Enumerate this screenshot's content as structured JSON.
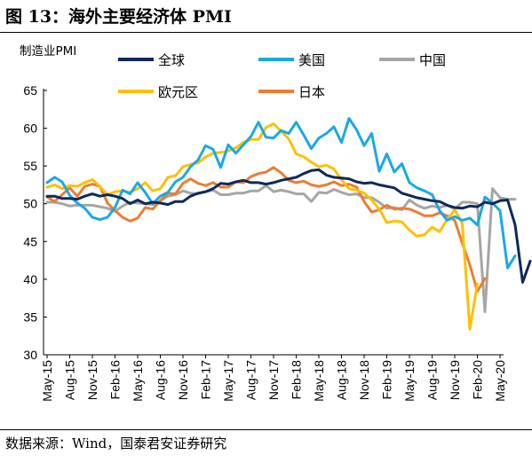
{
  "figure": {
    "title": "图 13：海外主要经济体 PMI",
    "source": "数据来源：Wind，国泰君安证券研究"
  },
  "chart_data": {
    "type": "line",
    "ylabel": "制造业PMI",
    "ylim": [
      30,
      65
    ],
    "yticks": [
      30,
      35,
      40,
      45,
      50,
      55,
      60,
      65
    ],
    "x_labels": [
      "May-15",
      "Aug-15",
      "Nov-15",
      "Feb-16",
      "May-16",
      "Aug-16",
      "Nov-16",
      "Feb-17",
      "May-17",
      "Aug-17",
      "Nov-17",
      "Feb-18",
      "May-18",
      "Aug-18",
      "Nov-18",
      "Feb-19",
      "May-19",
      "Aug-19",
      "Nov-19",
      "Feb-20",
      "May-20"
    ],
    "legend_position": "top",
    "series": [
      {
        "name": "全球",
        "color": "#0d2a5c",
        "values": [
          51.0,
          51.0,
          50.7,
          50.7,
          50.6,
          51.0,
          51.3,
          51.0,
          51.2,
          51.0,
          50.7,
          50.0,
          50.5,
          50.0,
          50.2,
          50.1,
          49.9,
          50.3,
          50.3,
          51.0,
          51.4,
          51.6,
          52.0,
          52.7,
          52.6,
          52.9,
          53.1,
          52.8,
          52.8,
          52.6,
          52.8,
          53.1,
          53.3,
          53.5,
          54.0,
          54.4,
          54.5,
          53.8,
          53.5,
          53.4,
          53.3,
          52.9,
          52.7,
          52.8,
          52.5,
          52.3,
          52.1,
          51.4,
          51.1,
          50.8,
          50.6,
          50.4,
          50.3,
          49.8,
          49.5,
          49.4,
          49.7,
          49.6,
          50.2,
          50.0,
          50.4,
          50.5,
          47.2,
          39.6,
          42.4
        ]
      },
      {
        "name": "美国",
        "color": "#19a9e6",
        "values": [
          52.8,
          53.5,
          52.9,
          51.1,
          50.1,
          49.4,
          48.2,
          47.9,
          48.2,
          49.5,
          51.8,
          51.3,
          52.8,
          51.5,
          50.0,
          51.0,
          51.5,
          52.9,
          53.5,
          54.9,
          55.8,
          57.7,
          57.2,
          54.8,
          57.8,
          56.7,
          57.8,
          58.9,
          60.8,
          58.8,
          58.7,
          59.7,
          59.3,
          60.8,
          59.1,
          57.3,
          58.7,
          59.3,
          60.2,
          58.1,
          61.3,
          59.8,
          57.7,
          59.3,
          54.3,
          56.6,
          54.2,
          55.3,
          52.8,
          52.1,
          51.7,
          51.2,
          49.1,
          47.8,
          48.3,
          47.8,
          48.1,
          47.2,
          50.9,
          50.1,
          49.1,
          41.5,
          43.1
        ]
      },
      {
        "name": "中国",
        "color": "#a6a6a6",
        "values": [
          50.2,
          50.2,
          50.0,
          49.7,
          49.8,
          49.8,
          49.8,
          49.6,
          49.4,
          49.0,
          49.7,
          50.2,
          50.1,
          50.0,
          49.9,
          50.4,
          51.0,
          51.2,
          51.7,
          51.4,
          51.3,
          51.6,
          51.8,
          51.2,
          51.2,
          51.4,
          51.4,
          51.7,
          51.7,
          52.4,
          51.6,
          51.8,
          51.6,
          51.3,
          51.3,
          50.3,
          51.5,
          51.4,
          51.9,
          51.5,
          51.2,
          51.3,
          50.8,
          50.8,
          50.2,
          49.4,
          49.5,
          49.2,
          50.5,
          49.8,
          49.4,
          49.7,
          49.5,
          49.8,
          49.3,
          50.2,
          50.2,
          50.0,
          35.7,
          52.0,
          50.8,
          50.6,
          50.6
        ]
      },
      {
        "name": "欧元区",
        "color": "#ffc000",
        "values": [
          52.2,
          52.5,
          52.0,
          52.4,
          52.3,
          52.8,
          53.2,
          52.3,
          51.2,
          51.6,
          51.7,
          51.5,
          52.0,
          52.8,
          51.7,
          52.0,
          53.5,
          53.7,
          54.9,
          55.2,
          55.4,
          56.2,
          56.7,
          56.8,
          57.0,
          57.4,
          58.1,
          58.5,
          58.5,
          60.1,
          60.6,
          59.6,
          58.6,
          56.6,
          56.2,
          55.5,
          54.9,
          55.1,
          54.6,
          53.2,
          52.0,
          51.8,
          51.4,
          50.5,
          49.3,
          47.5,
          47.7,
          47.6,
          46.5,
          45.7,
          45.9,
          46.9,
          46.3,
          47.9,
          49.2,
          47.4,
          33.4,
          39.4
        ]
      },
      {
        "name": "日本",
        "color": "#ed7d31",
        "values": [
          50.9,
          50.3,
          51.2,
          52.1,
          51.0,
          52.3,
          52.6,
          52.3,
          50.1,
          49.1,
          48.2,
          47.7,
          48.1,
          49.5,
          49.3,
          50.4,
          51.4,
          51.3,
          52.7,
          53.3,
          52.7,
          52.4,
          52.8,
          52.2,
          52.2,
          52.9,
          52.8,
          53.6,
          54.0,
          54.2,
          54.8,
          54.1,
          53.1,
          52.8,
          53.0,
          52.5,
          52.3,
          52.5,
          52.9,
          52.4,
          52.6,
          52.2,
          50.3,
          48.9,
          49.2,
          49.8,
          49.3,
          49.4,
          49.3,
          48.9,
          48.4,
          48.4,
          48.8,
          48.4,
          47.8,
          44.8,
          41.9,
          38.4,
          40.1
        ]
      }
    ]
  }
}
